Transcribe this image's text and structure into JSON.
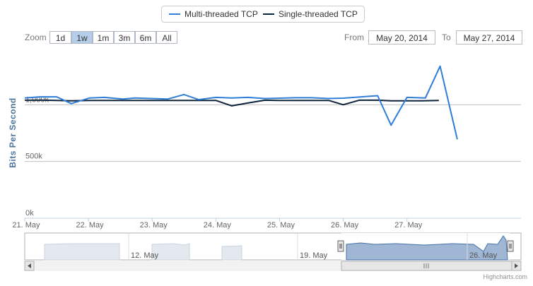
{
  "legend": {
    "items": [
      {
        "label": "Multi-threaded TCP",
        "color": "#2f7ed8"
      },
      {
        "label": "Single-threaded TCP",
        "color": "#0d233a"
      }
    ]
  },
  "range_selector": {
    "zoom_label": "Zoom",
    "buttons": [
      "1d",
      "1w",
      "1m",
      "3m",
      "6m",
      "All"
    ],
    "selected": "1w",
    "from_label": "From",
    "from_value": "May 20, 2014",
    "to_label": "To",
    "to_value": "May 27, 2014"
  },
  "credits": "Highcharts.com",
  "chart_data": {
    "type": "line",
    "ylabel": "Bits Per Second",
    "y_ticks": [
      {
        "value": 0,
        "label": "0k"
      },
      {
        "value": 500000,
        "label": "500k"
      },
      {
        "value": 1000000,
        "label": "1,000k"
      }
    ],
    "ylim": [
      0,
      1500000
    ],
    "xlim": [
      0,
      7.79
    ],
    "x_ticks": [
      {
        "value": 0,
        "label": "21. May"
      },
      {
        "value": 1,
        "label": "22. May"
      },
      {
        "value": 2,
        "label": "23. May"
      },
      {
        "value": 3,
        "label": "24. May"
      },
      {
        "value": 4,
        "label": "25. May"
      },
      {
        "value": 5,
        "label": "26. May"
      },
      {
        "value": 6,
        "label": "27. May"
      }
    ],
    "series": [
      {
        "name": "Multi-threaded TCP",
        "color": "#2f7ed8",
        "x": [
          0,
          0.24,
          0.5,
          0.73,
          1.02,
          1.25,
          1.54,
          1.73,
          2.0,
          2.24,
          2.5,
          2.73,
          3.0,
          3.25,
          3.5,
          3.77,
          4.0,
          4.25,
          4.5,
          4.77,
          5.0,
          5.25,
          5.54,
          5.75,
          6.0,
          6.29,
          6.52,
          6.79
        ],
        "y": [
          1060000,
          1070000,
          1070000,
          1010000,
          1060000,
          1065000,
          1050000,
          1060000,
          1055000,
          1050000,
          1090000,
          1045000,
          1065000,
          1060000,
          1065000,
          1055000,
          1058000,
          1062000,
          1062000,
          1055000,
          1058000,
          1068000,
          1080000,
          820000,
          1065000,
          1060000,
          1340000,
          695000
        ]
      },
      {
        "name": "Single-threaded TCP",
        "color": "#0d233a",
        "x": [
          0,
          0.3,
          0.5,
          0.73,
          1.02,
          1.25,
          1.54,
          1.8,
          2.0,
          2.24,
          2.5,
          2.73,
          3.0,
          3.25,
          3.5,
          3.77,
          4.0,
          4.25,
          4.5,
          4.77,
          5.0,
          5.25,
          5.54,
          5.75,
          6.0,
          6.24,
          6.5
        ],
        "y": [
          1040000,
          1040000,
          1038000,
          1035000,
          1038000,
          1038000,
          1038000,
          1038000,
          1038000,
          1038000,
          1038000,
          1038000,
          1038000,
          990000,
          1015000,
          1040000,
          1038000,
          1038000,
          1038000,
          1038000,
          1000000,
          1040000,
          1040000,
          1035000,
          1035000,
          1035000,
          1038000
        ]
      }
    ],
    "navigator": {
      "x_ticks": [
        {
          "value": -9,
          "label": "12. May"
        },
        {
          "value": -2,
          "label": "19. May"
        },
        {
          "value": 5,
          "label": "26. May"
        }
      ],
      "selected_range": [
        0,
        7.79
      ]
    }
  }
}
